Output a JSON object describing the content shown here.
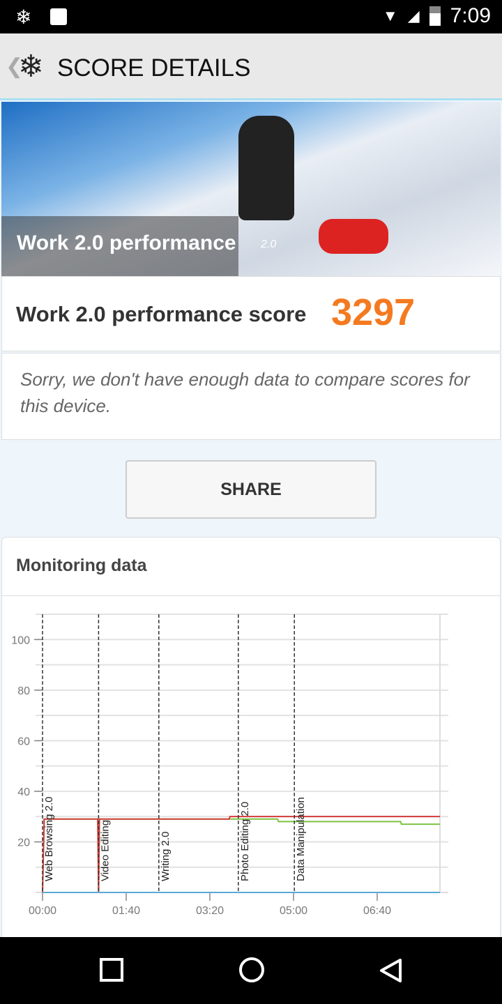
{
  "status": {
    "time": "7:09",
    "icons": [
      "snowflake-icon",
      "image-icon",
      "wifi-icon",
      "signal-icon",
      "battery-icon"
    ]
  },
  "appbar": {
    "title": "SCORE DETAILS"
  },
  "hero": {
    "title": "Work 2.0 performance",
    "version": "2.0"
  },
  "score": {
    "label": "Work 2.0 performance score",
    "value": "3297",
    "color": "#f47a20"
  },
  "notice": "Sorry, we don't have enough data to compare scores for this device.",
  "share_label": "SHARE",
  "monitoring": {
    "title": "Monitoring data"
  },
  "chart_data": {
    "type": "line",
    "ylim": [
      0,
      110
    ],
    "xlim": [
      0,
      475
    ],
    "yticks": [
      "20",
      "40",
      "60",
      "80",
      "100"
    ],
    "ytick_values": [
      20,
      40,
      60,
      80,
      100
    ],
    "xticks": [
      "00:00",
      "01:40",
      "03:20",
      "05:00",
      "06:40"
    ],
    "xtick_values": [
      0,
      100,
      200,
      300,
      400
    ],
    "grid": true,
    "markers": [
      {
        "label": "Web Browsing 2.0",
        "x": 0
      },
      {
        "label": "Video Editing",
        "x": 67
      },
      {
        "label": "Writing 2.0",
        "x": 139
      },
      {
        "label": "Photo Editing 2.0",
        "x": 234
      },
      {
        "label": "Data Manipulation",
        "x": 301
      }
    ],
    "series": [
      {
        "color": "#7dc242",
        "points": [
          [
            0,
            0
          ],
          [
            2,
            29
          ],
          [
            66,
            29
          ],
          [
            67,
            0
          ],
          [
            68,
            29
          ],
          [
            281,
            29
          ],
          [
            282,
            28
          ],
          [
            428,
            28
          ],
          [
            429,
            27
          ],
          [
            475,
            27
          ]
        ]
      },
      {
        "color": "#d63a3a",
        "points": [
          [
            0,
            0
          ],
          [
            2,
            29
          ],
          [
            66,
            29
          ],
          [
            67,
            0
          ],
          [
            68,
            29
          ],
          [
            223,
            29
          ],
          [
            224,
            30
          ],
          [
            475,
            30
          ]
        ]
      },
      {
        "color": "#5aa9d6",
        "points": [
          [
            0,
            0
          ],
          [
            475,
            0
          ]
        ]
      }
    ]
  }
}
